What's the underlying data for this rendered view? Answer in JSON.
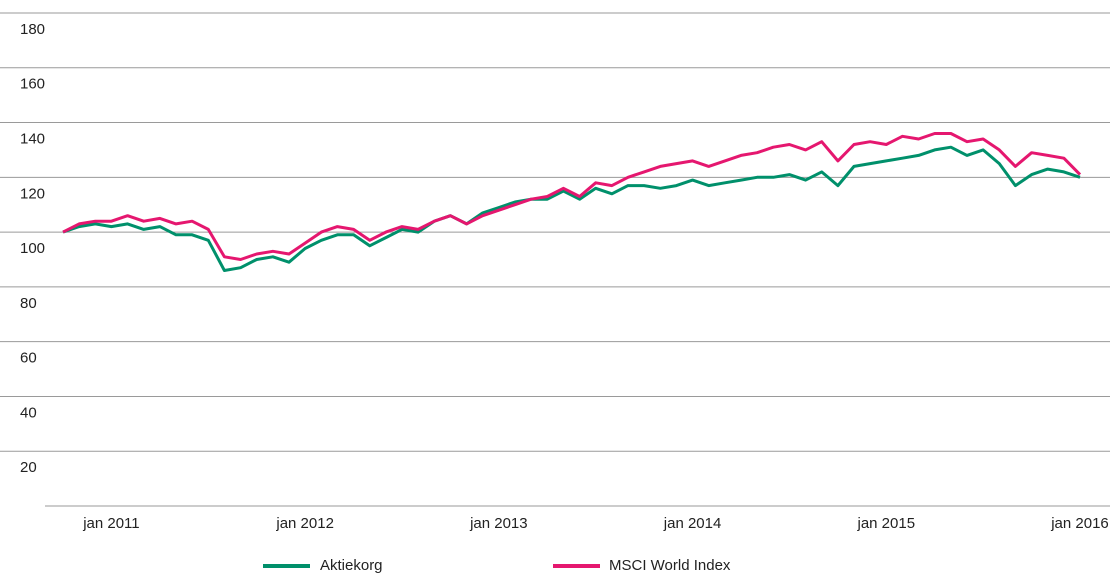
{
  "chart_data": {
    "type": "line",
    "categories": [
      null,
      null,
      null,
      "jan 2011",
      null,
      null,
      null,
      null,
      null,
      null,
      null,
      null,
      null,
      null,
      null,
      "jan 2012",
      null,
      null,
      null,
      null,
      null,
      null,
      null,
      null,
      null,
      null,
      null,
      "jan 2013",
      null,
      null,
      null,
      null,
      null,
      null,
      null,
      null,
      null,
      null,
      null,
      "jan 2014",
      null,
      null,
      null,
      null,
      null,
      null,
      null,
      null,
      null,
      null,
      null,
      "jan 2015",
      null,
      null,
      null,
      null,
      null,
      null,
      null,
      null,
      null,
      null,
      null,
      "jan 2016"
    ],
    "series": [
      {
        "name": "Aktiekorg",
        "color": "#00906b",
        "values": [
          100,
          102,
          103,
          102,
          103,
          101,
          102,
          99,
          99,
          97,
          86,
          87,
          90,
          91,
          89,
          94,
          97,
          99,
          99,
          95,
          98,
          101,
          100,
          104,
          106,
          103,
          107,
          109,
          111,
          112,
          112,
          115,
          112,
          116,
          114,
          117,
          117,
          116,
          117,
          119,
          117,
          118,
          119,
          120,
          120,
          121,
          119,
          122,
          117,
          124,
          125,
          126,
          127,
          128,
          130,
          131,
          128,
          130,
          125,
          117,
          121,
          123,
          122,
          120
        ]
      },
      {
        "name": "MSCI World Index",
        "color": "#e5176f",
        "values": [
          100,
          103,
          104,
          104,
          106,
          104,
          105,
          103,
          104,
          101,
          91,
          90,
          92,
          93,
          92,
          96,
          100,
          102,
          101,
          97,
          100,
          102,
          101,
          104,
          106,
          103,
          106,
          108,
          110,
          112,
          113,
          116,
          113,
          118,
          117,
          120,
          122,
          124,
          125,
          126,
          124,
          126,
          128,
          129,
          131,
          132,
          130,
          133,
          126,
          132,
          133,
          132,
          135,
          134,
          136,
          136,
          133,
          134,
          130,
          124,
          129,
          128,
          127,
          121
        ]
      }
    ],
    "ylim": [
      0,
      180
    ],
    "yticks": [
      20,
      40,
      60,
      80,
      100,
      120,
      140,
      160,
      180
    ],
    "grid": true
  }
}
